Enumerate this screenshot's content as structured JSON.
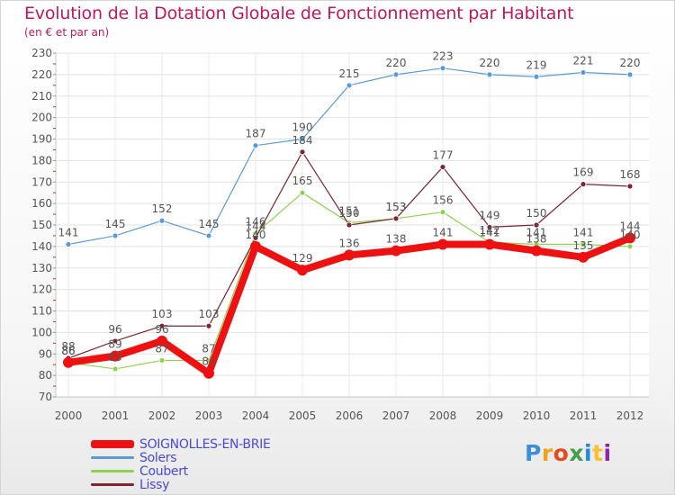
{
  "chart_data": {
    "type": "line",
    "title": "Evolution de la Dotation Globale de Fonctionnement par Habitant",
    "subtitle": "(en € et par an)",
    "xlabel": "",
    "ylabel": "",
    "ylim": [
      70,
      230
    ],
    "yticks": [
      70,
      80,
      90,
      100,
      110,
      120,
      130,
      140,
      150,
      160,
      170,
      180,
      190,
      200,
      210,
      220,
      230
    ],
    "x": [
      "2000",
      "2001",
      "2002",
      "2003",
      "2004",
      "2005",
      "2006",
      "2007",
      "2008",
      "2009",
      "2010",
      "2011",
      "2012"
    ],
    "grid": true,
    "legend_position": "bottom-left",
    "series": [
      {
        "name": "Solers",
        "color": "#5b9bd5",
        "values": [
          141,
          145,
          152,
          145,
          187,
          190,
          215,
          220,
          223,
          220,
          219,
          221,
          220
        ]
      },
      {
        "name": "Coubert",
        "color": "#8fd14f",
        "values": [
          86,
          83,
          87,
          87,
          146,
          165,
          151,
          153,
          156,
          142,
          141,
          141,
          140
        ]
      },
      {
        "name": "Lissy",
        "color": "#7b2631",
        "values": [
          88,
          96,
          103,
          103,
          144,
          184,
          150,
          153,
          177,
          149,
          150,
          169,
          168
        ]
      },
      {
        "name": "SOIGNOLLES-EN-BRIE",
        "color": "#ee1111",
        "values": [
          86,
          89,
          96,
          81,
          140,
          129,
          136,
          138,
          141,
          141,
          138,
          135,
          144
        ],
        "highlight": true
      }
    ]
  },
  "legend": {
    "items": [
      {
        "label": "SOIGNOLLES-EN-BRIE",
        "color": "#ee1111"
      },
      {
        "label": "Solers",
        "color": "#5b9bd5"
      },
      {
        "label": "Coubert",
        "color": "#8fd14f"
      },
      {
        "label": "Lissy",
        "color": "#7b2631"
      }
    ]
  },
  "logo": {
    "letters": [
      {
        "ch": "P",
        "color": "#3b8fd8"
      },
      {
        "ch": "r",
        "color": "#f2a21a"
      },
      {
        "ch": "o",
        "color": "#e64a19"
      },
      {
        "ch": "x",
        "color": "#43a047"
      },
      {
        "ch": "i",
        "color": "#1e88e5"
      },
      {
        "ch": "t",
        "color": "#fbc02d"
      },
      {
        "ch": "i",
        "color": "#8e24aa"
      }
    ]
  }
}
